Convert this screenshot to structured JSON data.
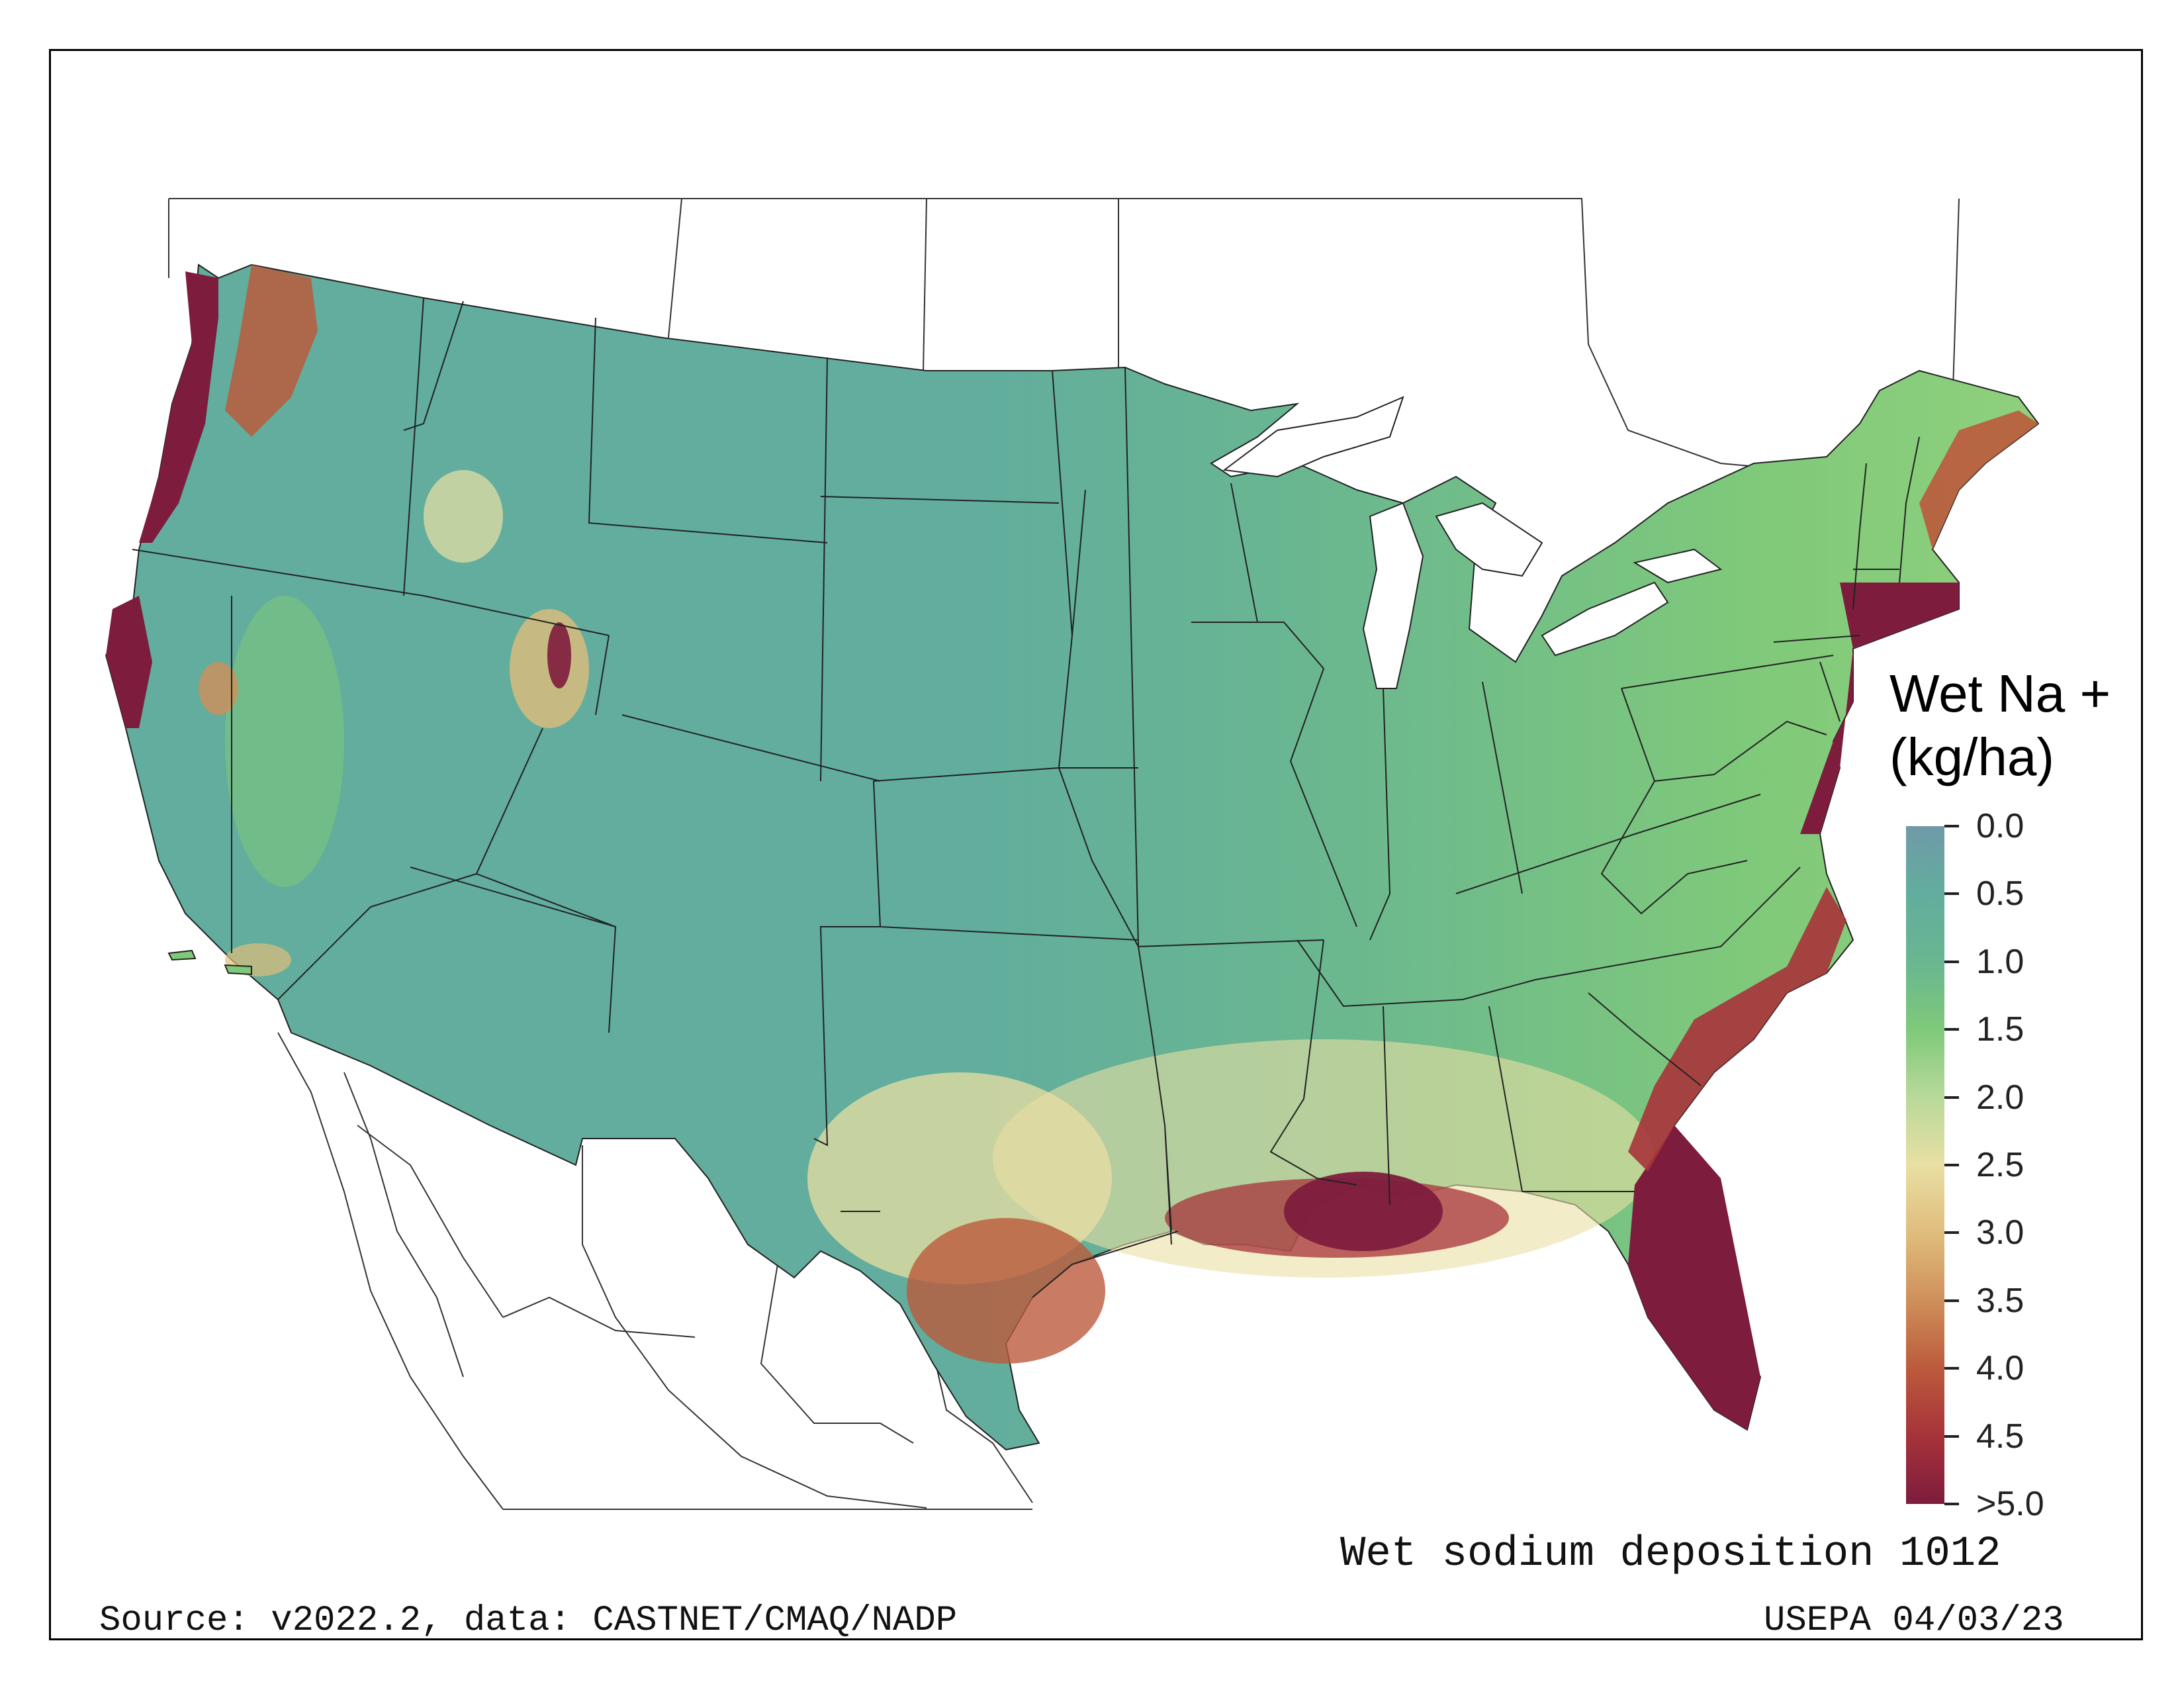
{
  "legend": {
    "title_line1": "Wet Na +",
    "title_line2": "(kg/ha)",
    "ticks": [
      "0.0",
      "0.5",
      "1.0",
      "1.5",
      "2.0",
      "2.5",
      "3.0",
      "3.5",
      "4.0",
      "4.5",
      ">5.0"
    ],
    "colors": [
      "#6f9aa8",
      "#62ad9d",
      "#69b691",
      "#7fc97a",
      "#b8d99a",
      "#e9dfa3",
      "#e0bd7c",
      "#cf8f5a",
      "#bb5a3c",
      "#a7333a",
      "#7d1c3d"
    ]
  },
  "caption": "Wet sodium deposition 1012",
  "source": "Source: v2022.2, data: CASTNET/CMAQ/NADP",
  "agency_date": "USEPA 04/03/23"
}
